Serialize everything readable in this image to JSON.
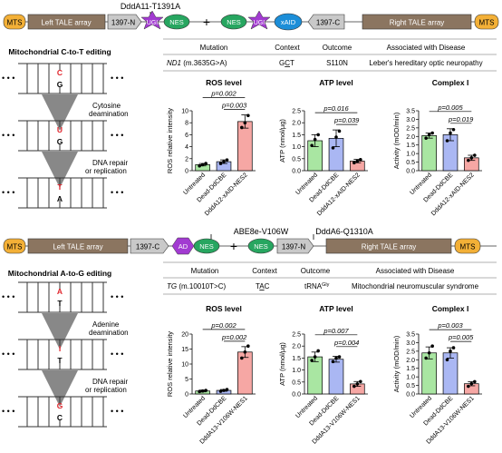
{
  "top_construct": {
    "variant_label": "DddA11-T1391A",
    "parts": [
      "MTS",
      "Left TALE array",
      "1397-N",
      "UGI",
      "NES",
      "+",
      "NES",
      "UGI",
      "xAID",
      "1397-C",
      "Right TALE array",
      "MTS"
    ]
  },
  "bottom_construct": {
    "variant_label_1": "ABE8e-V106W",
    "variant_label_2": "DddA6-Q1310A",
    "parts": [
      "MTS",
      "Left TALE array",
      "1397-C",
      "AD",
      "NES",
      "+",
      "NES",
      "1397-N",
      "Right TALE array",
      "MTS"
    ]
  },
  "panel_top": {
    "title": "Mitochondrial C-to-T editing",
    "bases": [
      "C",
      "G",
      "U",
      "G",
      "T",
      "A"
    ],
    "steps": [
      "Cytosine",
      "deamination",
      "DNA repair",
      "or replication"
    ],
    "table": {
      "headers": [
        "Mutation",
        "Context",
        "Outcome",
        "Associated with Disease"
      ],
      "row": {
        "gene": "ND1",
        "mutation": " (m.3635G>A)",
        "context_a": "G",
        "context_b": "C",
        "context_c": "T",
        "outcome": "S110N",
        "disease": "Leber's hereditary optic neuropathy"
      }
    }
  },
  "panel_bottom": {
    "title": "Mitochondrial A-to-G editing",
    "bases": [
      "A",
      "T",
      "I",
      "T",
      "G",
      "C"
    ],
    "steps": [
      "Adenine",
      "deamination",
      "DNA repair",
      "or replication"
    ],
    "table": {
      "headers": [
        "Mutation",
        "Context",
        "Outcome",
        "Associated with Disease"
      ],
      "row": {
        "gene": "TG",
        "mutation": " (m.10010T>C)",
        "context_a": "T",
        "context_b": "A",
        "context_c": "C",
        "outcome_main": "tRNA",
        "outcome_sup": "Gly",
        "disease": "Mitochondrial neuromuscular syndrome"
      }
    }
  },
  "chart_data": [
    {
      "type": "bar",
      "title": "ROS level",
      "ylabel": "ROS relative intensity",
      "categories": [
        "Untreated",
        "Dead-DdCBE",
        "DddA12-xAID-NES2"
      ],
      "values": [
        1.0,
        1.5,
        8.2
      ],
      "errors": [
        0.2,
        0.3,
        1.1
      ],
      "points": [
        [
          0.8,
          1.0,
          1.2
        ],
        [
          1.2,
          1.5,
          1.8
        ],
        [
          7.2,
          8.0,
          9.2
        ]
      ],
      "ylim": [
        0,
        10
      ],
      "yticks": [
        0,
        2,
        4,
        6,
        8,
        10
      ],
      "colors": [
        "#a9e6a2",
        "#aab7f3",
        "#f6a7a4"
      ],
      "significance": [
        {
          "from": 0,
          "to": 2,
          "label": "p=0.002"
        },
        {
          "from": 1,
          "to": 2,
          "label": "p=0.003"
        }
      ]
    },
    {
      "type": "bar",
      "title": "ATP level",
      "ylabel": "ATP (nmol/µg)",
      "categories": [
        "Untreated",
        "Dead-DdCBE",
        "DddA12-xAID-NES2"
      ],
      "values": [
        1.25,
        1.35,
        0.4
      ],
      "errors": [
        0.25,
        0.35,
        0.07
      ],
      "points": [
        [
          1.05,
          1.3,
          1.5
        ],
        [
          0.95,
          1.4,
          1.65
        ],
        [
          0.33,
          0.4,
          0.46
        ]
      ],
      "ylim": [
        0,
        2.5
      ],
      "yticks": [
        0.0,
        0.5,
        1.0,
        1.5,
        2.0,
        2.5
      ],
      "colors": [
        "#a9e6a2",
        "#aab7f3",
        "#f6a7a4"
      ],
      "significance": [
        {
          "from": 0,
          "to": 2,
          "label": "p=0.016"
        },
        {
          "from": 1,
          "to": 2,
          "label": "p=0.039"
        }
      ]
    },
    {
      "type": "bar",
      "title": "Complex I",
      "ylabel": "Activity (mOD/min)",
      "categories": [
        "Untreated",
        "Dead-DdCBE",
        "DddA12-xAID-NES2"
      ],
      "values": [
        2.05,
        2.1,
        0.75
      ],
      "errors": [
        0.15,
        0.35,
        0.15
      ],
      "points": [
        [
          1.9,
          2.1,
          2.2
        ],
        [
          1.75,
          2.2,
          2.4
        ],
        [
          0.6,
          0.75,
          0.9
        ]
      ],
      "ylim": [
        0,
        3.5
      ],
      "yticks": [
        0.0,
        0.5,
        1.0,
        1.5,
        2.0,
        2.5,
        3.0,
        3.5
      ],
      "colors": [
        "#a9e6a2",
        "#aab7f3",
        "#f6a7a4"
      ],
      "significance": [
        {
          "from": 0,
          "to": 2,
          "label": "p=0.005"
        },
        {
          "from": 1,
          "to": 2,
          "label": "p=0.019"
        }
      ]
    },
    {
      "type": "bar",
      "title": "ROS level",
      "ylabel": "ROS relative intensity",
      "categories": [
        "Untreated",
        "Dead-DdCBE",
        "DddA13-V106W-NES1"
      ],
      "values": [
        1.0,
        1.2,
        14.0
      ],
      "errors": [
        0.3,
        0.3,
        1.8
      ],
      "points": [
        [
          0.8,
          1.0,
          1.2
        ],
        [
          0.9,
          1.2,
          1.5
        ],
        [
          12.0,
          14.0,
          16.0
        ]
      ],
      "ylim": [
        0,
        20
      ],
      "yticks": [
        0,
        5,
        10,
        15,
        20
      ],
      "colors": [
        "#a9e6a2",
        "#aab7f3",
        "#f6a7a4"
      ],
      "significance": [
        {
          "from": 0,
          "to": 2,
          "label": "p=0.002"
        },
        {
          "from": 1,
          "to": 2,
          "label": "p=0.002"
        }
      ]
    },
    {
      "type": "bar",
      "title": "ATP level",
      "ylabel": "ATP (nmol/µg)",
      "categories": [
        "Untreated",
        "Dead-DdCBE",
        "DddA13-V106W-NES1"
      ],
      "values": [
        1.55,
        1.45,
        0.42
      ],
      "errors": [
        0.2,
        0.12,
        0.1
      ],
      "points": [
        [
          1.4,
          1.55,
          1.8
        ],
        [
          1.35,
          1.5,
          1.55
        ],
        [
          0.32,
          0.42,
          0.52
        ]
      ],
      "ylim": [
        0,
        2.5
      ],
      "yticks": [
        0.0,
        0.5,
        1.0,
        1.5,
        2.0,
        2.5
      ],
      "colors": [
        "#a9e6a2",
        "#aab7f3",
        "#f6a7a4"
      ],
      "significance": [
        {
          "from": 0,
          "to": 2,
          "label": "p=0.007"
        },
        {
          "from": 1,
          "to": 2,
          "label": "p=0.004"
        }
      ]
    },
    {
      "type": "bar",
      "title": "Complex I",
      "ylabel": "Activity (mOD/min)",
      "categories": [
        "Untreated",
        "Dead-DdCBE",
        "DddA13-V106W-NES1"
      ],
      "values": [
        2.4,
        2.4,
        0.6
      ],
      "errors": [
        0.35,
        0.3,
        0.12
      ],
      "points": [
        [
          2.1,
          2.4,
          2.8
        ],
        [
          2.0,
          2.5,
          2.7
        ],
        [
          0.45,
          0.6,
          0.72
        ]
      ],
      "ylim": [
        0,
        3.5
      ],
      "yticks": [
        0.0,
        0.5,
        1.0,
        1.5,
        2.0,
        2.5,
        3.0,
        3.5
      ],
      "colors": [
        "#a9e6a2",
        "#aab7f3",
        "#f6a7a4"
      ],
      "significance": [
        {
          "from": 0,
          "to": 2,
          "label": "p=0.003"
        },
        {
          "from": 1,
          "to": 2,
          "label": "p=0.005"
        }
      ]
    }
  ]
}
